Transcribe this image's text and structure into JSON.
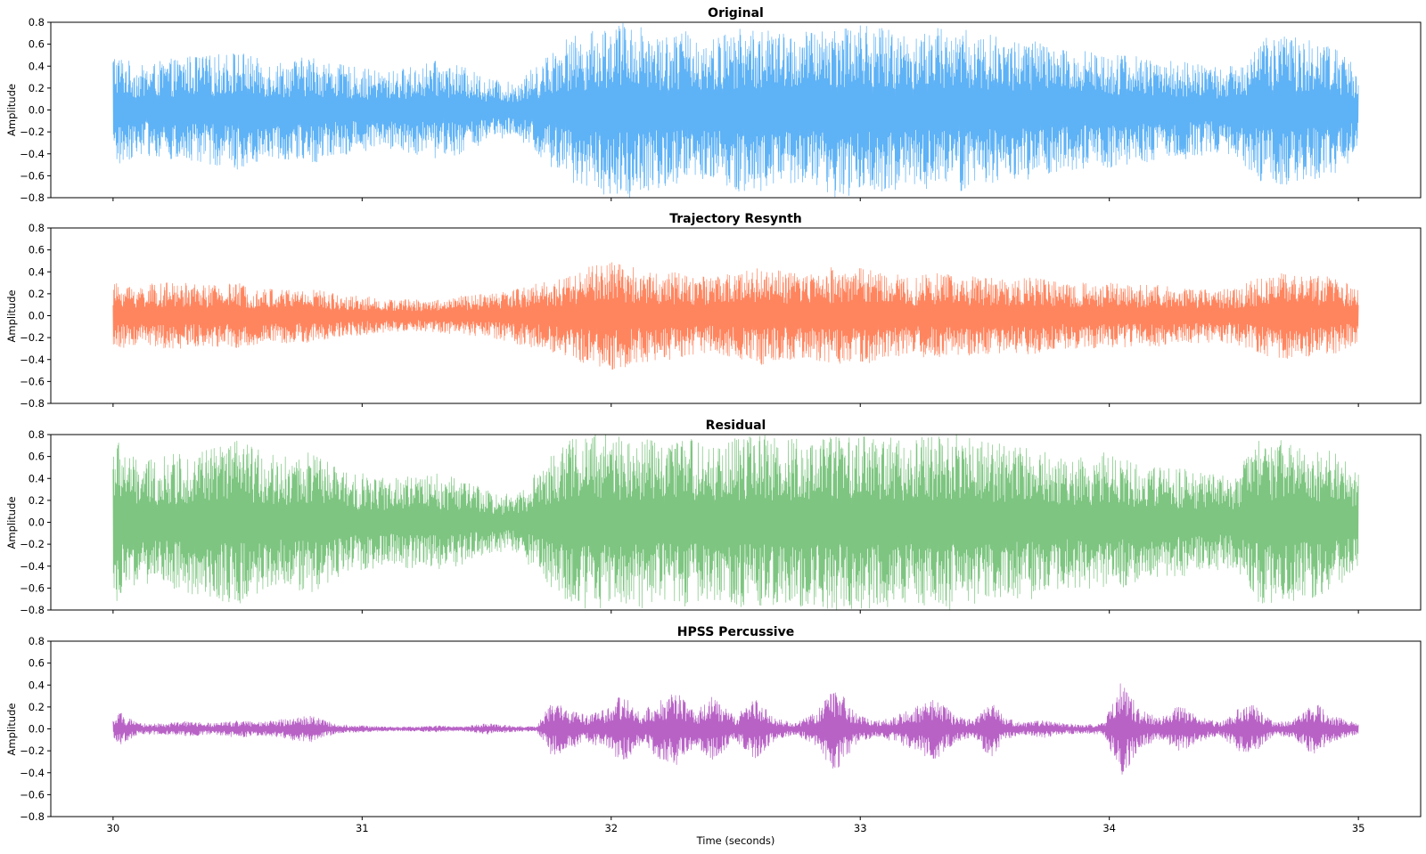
{
  "chart_data": [
    {
      "type": "line",
      "title": "Original",
      "ylabel": "Amplitude",
      "xlabel": "",
      "xlim": [
        29.75,
        35.25
      ],
      "ylim": [
        -0.8,
        0.8
      ],
      "x_range": [
        30,
        35
      ],
      "color": "#42a5f5",
      "x_ticks": [
        30,
        31,
        32,
        33,
        34,
        35
      ],
      "x_tick_labels": [],
      "y_ticks": [
        -0.8,
        -0.6,
        -0.4,
        -0.2,
        0.0,
        0.2,
        0.4,
        0.6,
        0.8
      ],
      "y_tick_labels": [
        "−0.8",
        "−0.6",
        "−0.4",
        "−0.2",
        "0.0",
        "0.2",
        "0.4",
        "0.6",
        "0.8"
      ],
      "envelope": {
        "x": [
          30.0,
          30.1,
          30.2,
          30.3,
          30.4,
          30.5,
          30.6,
          30.7,
          30.8,
          30.9,
          31.0,
          31.1,
          31.2,
          31.3,
          31.4,
          31.5,
          31.6,
          31.7,
          31.8,
          31.9,
          32.0,
          32.1,
          32.2,
          32.3,
          32.4,
          32.5,
          32.6,
          32.7,
          32.8,
          32.9,
          33.0,
          33.1,
          33.2,
          33.3,
          33.4,
          33.5,
          33.6,
          33.7,
          33.8,
          33.9,
          34.0,
          34.1,
          34.2,
          34.3,
          34.4,
          34.5,
          34.6,
          34.7,
          34.8,
          34.9,
          35.0
        ],
        "amplitude": [
          0.55,
          0.4,
          0.45,
          0.5,
          0.5,
          0.55,
          0.45,
          0.45,
          0.5,
          0.42,
          0.38,
          0.35,
          0.4,
          0.45,
          0.4,
          0.3,
          0.25,
          0.4,
          0.65,
          0.7,
          0.8,
          0.8,
          0.7,
          0.72,
          0.65,
          0.75,
          0.75,
          0.7,
          0.72,
          0.8,
          0.8,
          0.75,
          0.7,
          0.75,
          0.75,
          0.7,
          0.65,
          0.65,
          0.55,
          0.55,
          0.55,
          0.5,
          0.45,
          0.45,
          0.4,
          0.4,
          0.65,
          0.7,
          0.65,
          0.6,
          0.4
        ]
      }
    },
    {
      "type": "line",
      "title": "Trajectory Resynth",
      "ylabel": "Amplitude",
      "xlabel": "",
      "xlim": [
        29.75,
        35.25
      ],
      "ylim": [
        -0.8,
        0.8
      ],
      "x_range": [
        30,
        35
      ],
      "color": "#ff7043",
      "x_ticks": [
        30,
        31,
        32,
        33,
        34,
        35
      ],
      "x_tick_labels": [],
      "y_ticks": [
        -0.8,
        -0.6,
        -0.4,
        -0.2,
        0.0,
        0.2,
        0.4,
        0.6,
        0.8
      ],
      "y_tick_labels": [
        "−0.8",
        "−0.6",
        "−0.4",
        "−0.2",
        "0.0",
        "0.2",
        "0.4",
        "0.6",
        "0.8"
      ],
      "envelope": {
        "x": [
          30.0,
          30.1,
          30.2,
          30.3,
          30.4,
          30.5,
          30.6,
          30.7,
          30.8,
          30.9,
          31.0,
          31.1,
          31.2,
          31.3,
          31.4,
          31.5,
          31.6,
          31.7,
          31.8,
          31.9,
          32.0,
          32.1,
          32.2,
          32.3,
          32.4,
          32.5,
          32.6,
          32.7,
          32.8,
          32.9,
          33.0,
          33.1,
          33.2,
          33.3,
          33.4,
          33.5,
          33.6,
          33.7,
          33.8,
          33.9,
          34.0,
          34.1,
          34.2,
          34.3,
          34.4,
          34.5,
          34.6,
          34.7,
          34.8,
          34.9,
          35.0
        ],
        "amplitude": [
          0.3,
          0.28,
          0.3,
          0.3,
          0.28,
          0.3,
          0.25,
          0.25,
          0.25,
          0.2,
          0.18,
          0.15,
          0.15,
          0.15,
          0.18,
          0.2,
          0.25,
          0.3,
          0.35,
          0.45,
          0.5,
          0.45,
          0.4,
          0.4,
          0.35,
          0.4,
          0.45,
          0.4,
          0.4,
          0.45,
          0.45,
          0.4,
          0.35,
          0.4,
          0.38,
          0.35,
          0.35,
          0.35,
          0.3,
          0.3,
          0.3,
          0.28,
          0.28,
          0.25,
          0.25,
          0.25,
          0.35,
          0.4,
          0.38,
          0.35,
          0.25
        ]
      }
    },
    {
      "type": "line",
      "title": "Residual",
      "ylabel": "Amplitude",
      "xlabel": "",
      "xlim": [
        29.75,
        35.25
      ],
      "ylim": [
        -0.8,
        0.8
      ],
      "x_range": [
        30,
        35
      ],
      "color": "#66bb6a",
      "x_ticks": [
        30,
        31,
        32,
        33,
        34,
        35
      ],
      "x_tick_labels": [],
      "y_ticks": [
        -0.8,
        -0.6,
        -0.4,
        -0.2,
        0.0,
        0.2,
        0.4,
        0.6,
        0.8
      ],
      "y_tick_labels": [
        "−0.8",
        "−0.6",
        "−0.4",
        "−0.2",
        "0.0",
        "0.2",
        "0.4",
        "0.6",
        "0.8"
      ],
      "envelope": {
        "x": [
          30.0,
          30.1,
          30.2,
          30.3,
          30.4,
          30.5,
          30.6,
          30.7,
          30.8,
          30.9,
          31.0,
          31.1,
          31.2,
          31.3,
          31.4,
          31.5,
          31.6,
          31.7,
          31.8,
          31.9,
          32.0,
          32.1,
          32.2,
          32.3,
          32.4,
          32.5,
          32.6,
          32.7,
          32.8,
          32.9,
          33.0,
          33.1,
          33.2,
          33.3,
          33.4,
          33.5,
          33.6,
          33.7,
          33.8,
          33.9,
          34.0,
          34.1,
          34.2,
          34.3,
          34.4,
          34.5,
          34.6,
          34.7,
          34.8,
          34.9,
          35.0
        ],
        "amplitude": [
          0.8,
          0.55,
          0.6,
          0.65,
          0.7,
          0.75,
          0.65,
          0.6,
          0.65,
          0.5,
          0.45,
          0.4,
          0.42,
          0.45,
          0.4,
          0.3,
          0.25,
          0.45,
          0.75,
          0.8,
          0.8,
          0.8,
          0.75,
          0.78,
          0.7,
          0.78,
          0.8,
          0.75,
          0.78,
          0.8,
          0.8,
          0.78,
          0.75,
          0.8,
          0.8,
          0.75,
          0.7,
          0.7,
          0.6,
          0.6,
          0.65,
          0.55,
          0.5,
          0.5,
          0.45,
          0.45,
          0.75,
          0.75,
          0.7,
          0.65,
          0.45
        ]
      }
    },
    {
      "type": "line",
      "title": "HPSS Percussive",
      "ylabel": "Amplitude",
      "xlabel": "Time (seconds)",
      "xlim": [
        29.75,
        35.25
      ],
      "ylim": [
        -0.8,
        0.8
      ],
      "x_range": [
        30,
        35
      ],
      "color": "#ab47bc",
      "x_ticks": [
        30,
        31,
        32,
        33,
        34,
        35
      ],
      "x_tick_labels": [
        "30",
        "31",
        "32",
        "33",
        "34",
        "35"
      ],
      "y_ticks": [
        -0.8,
        -0.6,
        -0.4,
        -0.2,
        0.0,
        0.2,
        0.4,
        0.6,
        0.8
      ],
      "y_tick_labels": [
        "−0.8",
        "−0.6",
        "−0.4",
        "−0.2",
        "0.0",
        "0.2",
        "0.4",
        "0.6",
        "0.8"
      ],
      "envelope": {
        "x": [
          30.0,
          30.03,
          30.1,
          30.2,
          30.3,
          30.4,
          30.5,
          30.6,
          30.7,
          30.8,
          30.9,
          31.0,
          31.1,
          31.2,
          31.3,
          31.4,
          31.5,
          31.6,
          31.7,
          31.76,
          31.82,
          31.9,
          32.0,
          32.04,
          32.12,
          32.2,
          32.26,
          32.34,
          32.4,
          32.5,
          32.58,
          32.66,
          32.74,
          32.82,
          32.9,
          32.98,
          33.06,
          33.14,
          33.22,
          33.3,
          33.38,
          33.46,
          33.52,
          33.58,
          33.66,
          33.74,
          33.82,
          33.9,
          33.98,
          34.05,
          34.12,
          34.2,
          34.28,
          34.36,
          34.44,
          34.52,
          34.58,
          34.66,
          34.74,
          34.82,
          34.9,
          35.0
        ],
        "amplitude": [
          0.08,
          0.15,
          0.05,
          0.05,
          0.07,
          0.05,
          0.08,
          0.06,
          0.1,
          0.12,
          0.04,
          0.03,
          0.02,
          0.02,
          0.03,
          0.02,
          0.05,
          0.03,
          0.02,
          0.25,
          0.2,
          0.12,
          0.2,
          0.32,
          0.15,
          0.28,
          0.35,
          0.15,
          0.3,
          0.12,
          0.28,
          0.1,
          0.05,
          0.15,
          0.4,
          0.15,
          0.07,
          0.12,
          0.2,
          0.3,
          0.12,
          0.08,
          0.28,
          0.1,
          0.06,
          0.08,
          0.05,
          0.04,
          0.06,
          0.45,
          0.18,
          0.1,
          0.22,
          0.12,
          0.06,
          0.2,
          0.22,
          0.06,
          0.08,
          0.25,
          0.12,
          0.05
        ]
      }
    }
  ]
}
